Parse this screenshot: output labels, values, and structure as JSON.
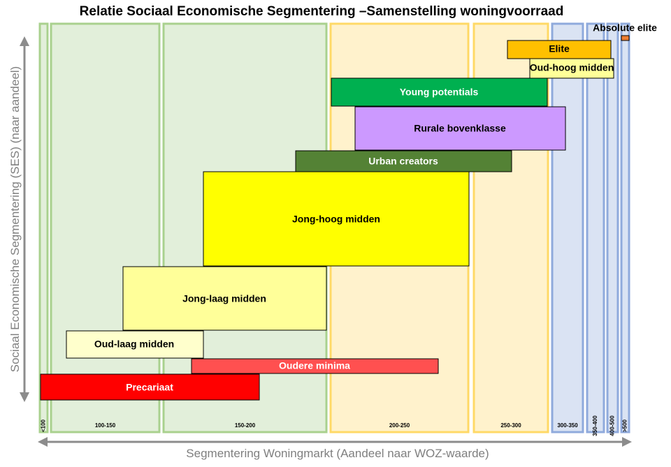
{
  "chart_data": {
    "type": "bar",
    "title": "Relatie Sociaal Economische Segmentering –Samenstelling woningvoorraad",
    "xlabel": "Segmentering Woningmarkt (Aandeel naar WOZ-waarde)",
    "ylabel": "Sociaal Economische Segmentering (SES) (naar aandeel)",
    "x_bands": [
      {
        "label": "<100",
        "color": "#e2efda",
        "border": "#a9d18e"
      },
      {
        "label": "100-150",
        "color": "#e2efda",
        "border": "#a9d18e"
      },
      {
        "label": "150-200",
        "color": "#e2efda",
        "border": "#a9d18e"
      },
      {
        "label": "200-250",
        "color": "#fff2cc",
        "border": "#ffd966"
      },
      {
        "label": "250-300",
        "color": "#fff2cc",
        "border": "#ffd966"
      },
      {
        "label": "300-350",
        "color": "#dae3f3",
        "border": "#8faadc"
      },
      {
        "label": "350-400",
        "color": "#dae3f3",
        "border": "#8faadc"
      },
      {
        "label": "400-500",
        "color": "#dae3f3",
        "border": "#8faadc"
      },
      {
        "label": ">500",
        "color": "#dae3f3",
        "border": "#8faadc"
      }
    ],
    "segments": [
      {
        "label": "Absolute elite",
        "color": "#ed7d31",
        "text_color": "#000000"
      },
      {
        "label": "Elite",
        "color": "#ffc000",
        "text_color": "#000000"
      },
      {
        "label": "Oud-hoog midden",
        "color": "#ffff99",
        "text_color": "#000000"
      },
      {
        "label": "Young potentials",
        "color": "#00b050",
        "text_color": "#ffffff"
      },
      {
        "label": "Rurale bovenklasse",
        "color": "#cc99ff",
        "text_color": "#000000"
      },
      {
        "label": "Urban creators",
        "color": "#548235",
        "text_color": "#ffffff"
      },
      {
        "label": "Jong-hoog midden",
        "color": "#ffff00",
        "text_color": "#000000"
      },
      {
        "label": "Jong-laag midden",
        "color": "#ffff99",
        "text_color": "#000000"
      },
      {
        "label": "Oud-laag midden",
        "color": "#ffffcc",
        "text_color": "#000000"
      },
      {
        "label": "Oudere minima",
        "color": "#ff5050",
        "text_color": "#ffffff"
      },
      {
        "label": "Precariaat",
        "color": "#ff0000",
        "text_color": "#ffffff"
      }
    ]
  }
}
